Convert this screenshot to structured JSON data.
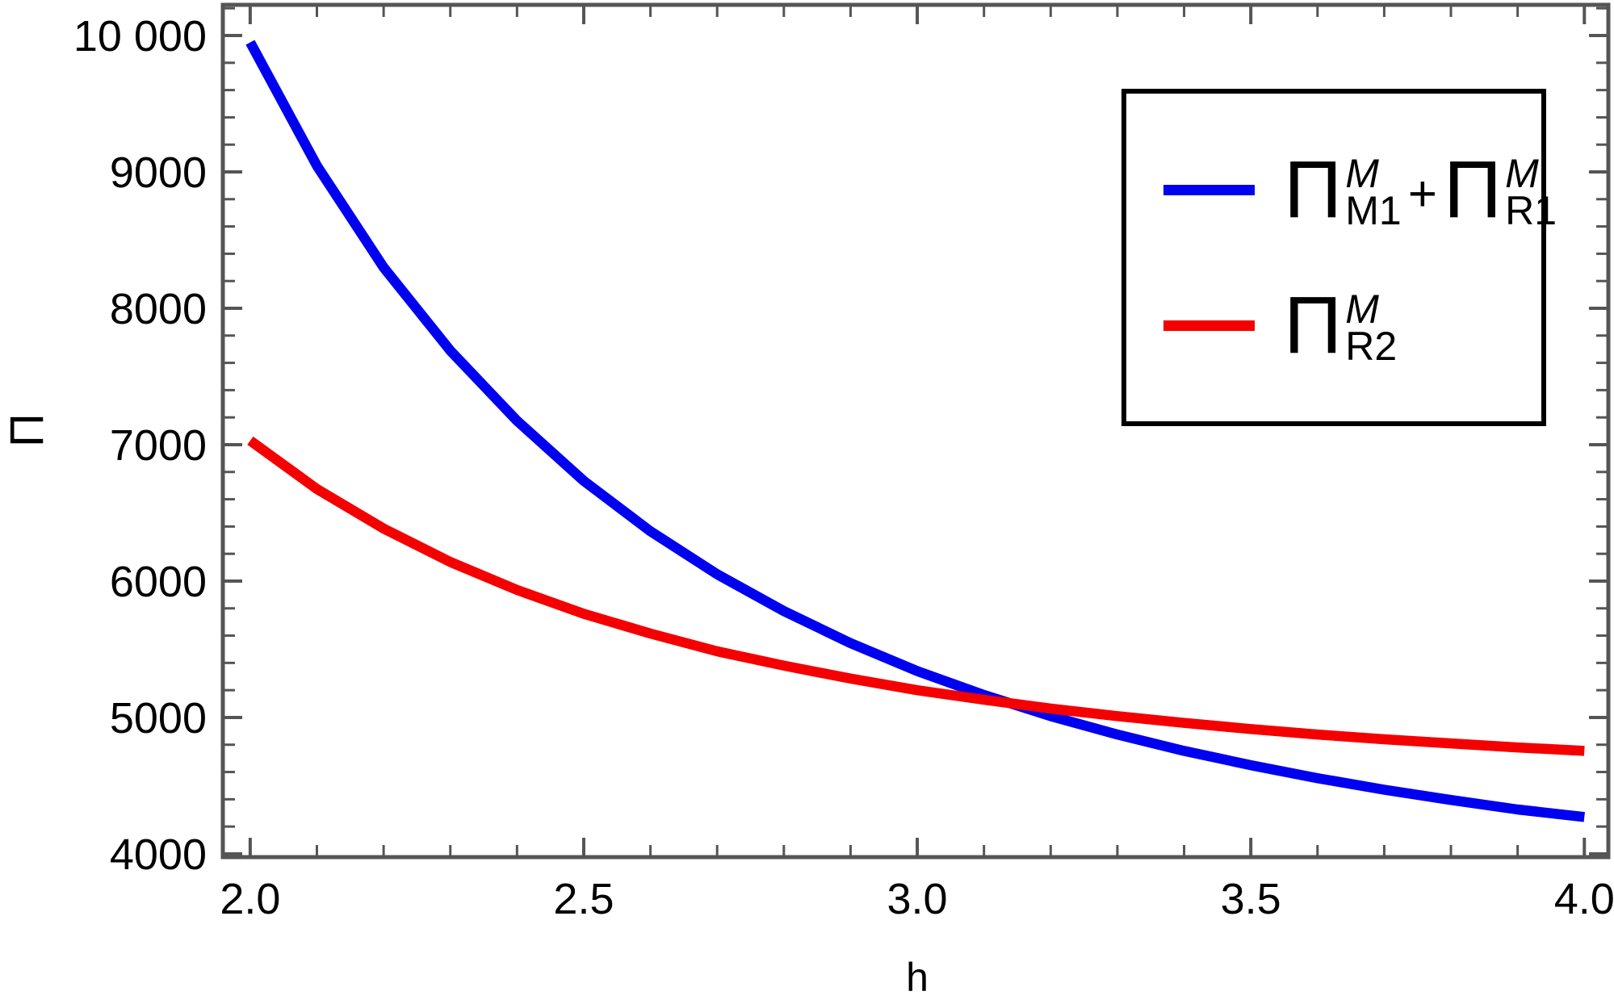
{
  "page": {
    "background": "#ffffff"
  },
  "chart_data": {
    "type": "line",
    "title": "",
    "xlabel": "h",
    "ylabel": "Π",
    "xlim": [
      1.959,
      4.036
    ],
    "ylim": [
      3976,
      10225
    ],
    "grid": false,
    "frame": true,
    "frame_color": "#555555",
    "tick_color": "#555555",
    "text_color": "#000000",
    "legend_position": "top-right",
    "x_major_ticks": [
      {
        "v": 2.0,
        "label": "2.0"
      },
      {
        "v": 2.5,
        "label": "2.5"
      },
      {
        "v": 3.0,
        "label": "3.0"
      },
      {
        "v": 3.5,
        "label": "3.5"
      },
      {
        "v": 4.0,
        "label": "4.0"
      }
    ],
    "y_major_ticks": [
      {
        "v": 4000,
        "label": "4000"
      },
      {
        "v": 5000,
        "label": "5000"
      },
      {
        "v": 6000,
        "label": "6000"
      },
      {
        "v": 7000,
        "label": "7000"
      },
      {
        "v": 8000,
        "label": "8000"
      },
      {
        "v": 9000,
        "label": "9000"
      },
      {
        "v": 10000,
        "label": "10 000"
      }
    ],
    "x_minor_step": 0.1,
    "y_minor_step": 200,
    "series": [
      {
        "name": "Π^M_M1+Π^M_R1",
        "color": "#0000f0",
        "x": [
          2.0,
          2.1,
          2.2,
          2.3,
          2.4,
          2.5,
          2.6,
          2.7,
          2.8,
          2.9,
          3.0,
          3.1,
          3.2,
          3.3,
          3.4,
          3.5,
          3.6,
          3.7,
          3.8,
          3.9,
          4.0
        ],
        "y": [
          9950,
          9045,
          8300,
          7690,
          7175,
          6735,
          6365,
          6050,
          5780,
          5545,
          5340,
          5165,
          5010,
          4875,
          4755,
          4650,
          4555,
          4470,
          4395,
          4325,
          4270
        ]
      },
      {
        "name": "Π^M_R2",
        "color": "#f50000",
        "x": [
          2.0,
          2.1,
          2.2,
          2.3,
          2.4,
          2.5,
          2.6,
          2.7,
          2.8,
          2.9,
          3.0,
          3.1,
          3.2,
          3.3,
          3.4,
          3.5,
          3.6,
          3.7,
          3.8,
          3.9,
          4.0
        ],
        "y": [
          7030,
          6675,
          6385,
          6140,
          5935,
          5760,
          5615,
          5485,
          5380,
          5285,
          5200,
          5130,
          5065,
          5010,
          4960,
          4915,
          4875,
          4840,
          4810,
          4780,
          4755
        ]
      }
    ]
  },
  "legend": {
    "entries": [
      {
        "series": 0,
        "segments": [
          {
            "base": "Π",
            "sup": "M",
            "sub": "M1"
          },
          {
            "op": "+"
          },
          {
            "base": "Π",
            "sup": "M",
            "sub": "R1"
          }
        ]
      },
      {
        "series": 1,
        "segments": [
          {
            "base": "Π",
            "sup": "M",
            "sub": "R2"
          }
        ]
      }
    ]
  }
}
